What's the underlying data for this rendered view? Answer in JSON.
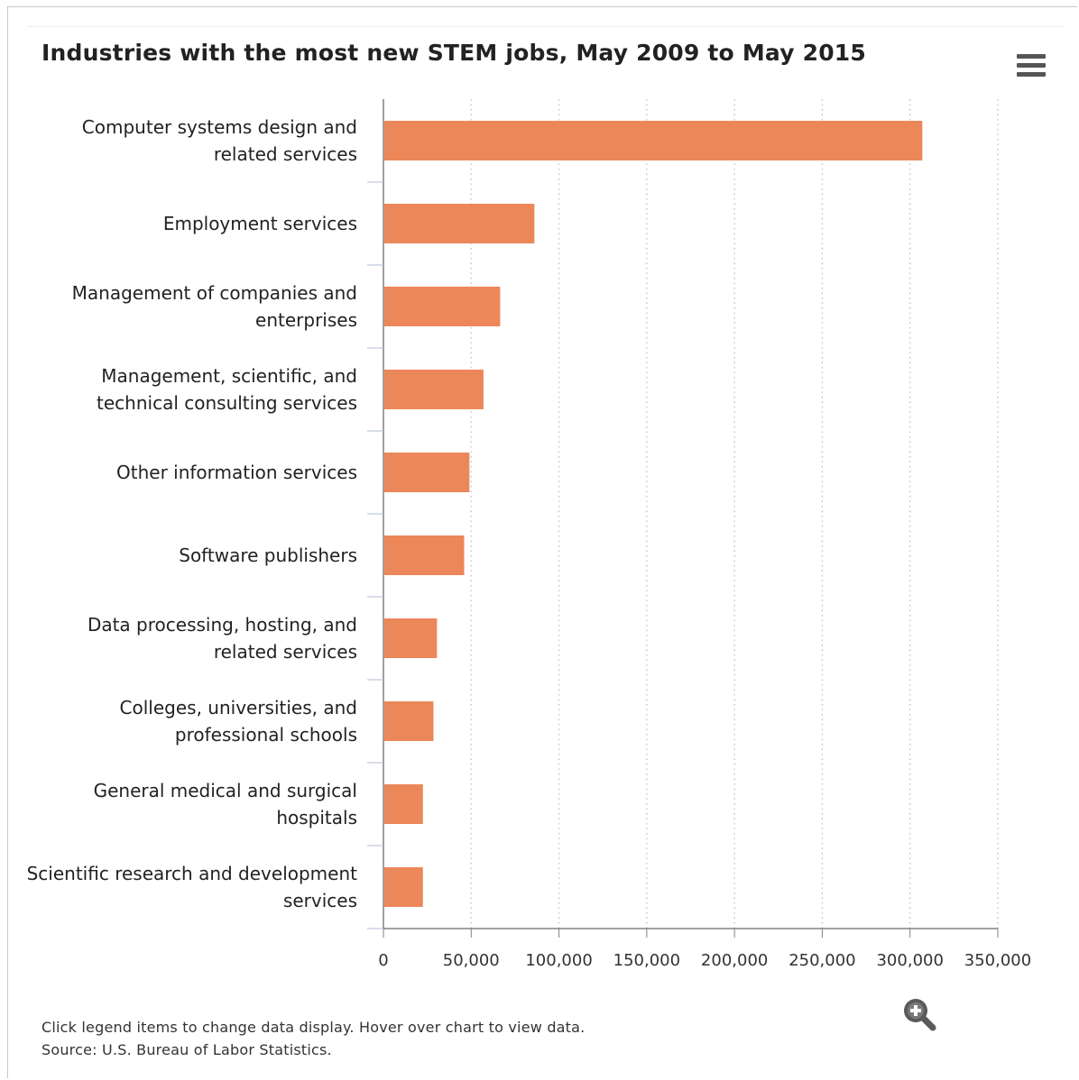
{
  "title": "Industries with the most new STEM jobs, May 2009 to May 2015",
  "footer": {
    "line1": "Click legend items to change data display. Hover over chart to view data.",
    "line2": "Source: U.S. Bureau of Labor Statistics."
  },
  "icons": {
    "menu": "hamburger-menu-icon",
    "zoom": "zoom-in-magnifier-icon"
  },
  "colors": {
    "bar": "#ec875a",
    "axis": "#808080",
    "grid": "#c8c8c8",
    "text": "#222222"
  },
  "chart_data": {
    "type": "bar",
    "orientation": "horizontal",
    "title": "Industries with the most new STEM jobs, May 2009 to May 2015",
    "categories": [
      [
        "Computer systems design and",
        "related services"
      ],
      [
        "Employment services"
      ],
      [
        "Management of companies and",
        "enterprises"
      ],
      [
        "Management, scientific, and",
        "technical consulting services"
      ],
      [
        "Other information services"
      ],
      [
        "Software publishers"
      ],
      [
        "Data processing, hosting, and",
        "related services"
      ],
      [
        "Colleges, universities, and",
        "professional schools"
      ],
      [
        "General medical and surgical",
        "hospitals"
      ],
      [
        "Scientific research and development",
        "services"
      ]
    ],
    "values": [
      307000,
      86000,
      66500,
      57000,
      49000,
      46000,
      30500,
      28500,
      22500,
      22500
    ],
    "xlim": [
      0,
      350000
    ],
    "xticks": [
      0,
      50000,
      100000,
      150000,
      200000,
      250000,
      300000,
      350000
    ],
    "xtick_labels": [
      "0",
      "50,000",
      "100,000",
      "150,000",
      "200,000",
      "250,000",
      "300,000",
      "350,000"
    ],
    "xlabel": "",
    "ylabel": "",
    "grid": "vertical dotted",
    "legend": "none"
  }
}
